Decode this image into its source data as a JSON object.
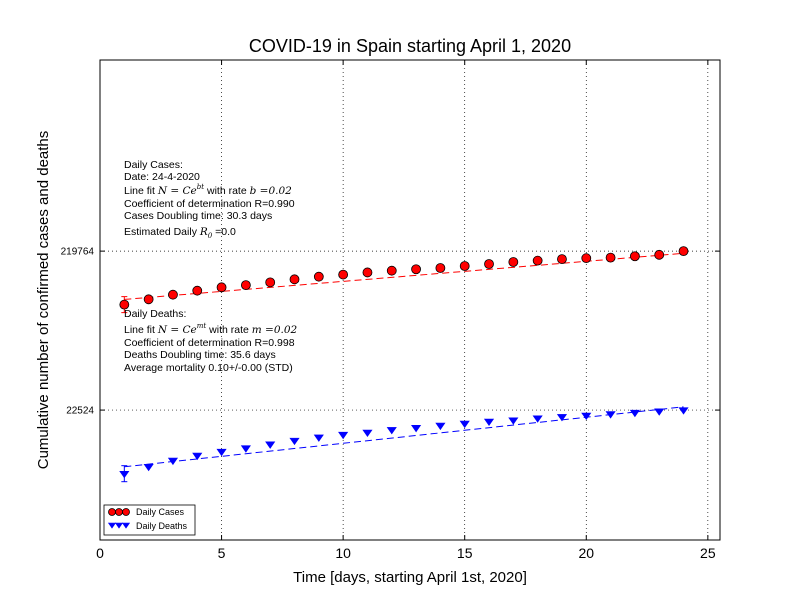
{
  "chart_data": {
    "type": "scatter",
    "title": "COVID-19 in Spain starting April 1, 2020",
    "xlabel": "Time [days, starting April 1st, 2020]",
    "ylabel": "Cumulative number of confirmed cases and deaths",
    "xlim": [
      0,
      25.5
    ],
    "xticks": [
      0,
      5,
      10,
      15,
      20,
      25
    ],
    "y_scale": "log",
    "ylim": [
      3500,
      3400000
    ],
    "yticks": [
      22524,
      219764
    ],
    "ytick_labels": [
      "22524",
      "219764"
    ],
    "grid": true,
    "legend_position": "lower-left",
    "series": [
      {
        "name": "Daily Cases",
        "color": "#ff0000",
        "marker": "circle",
        "x": [
          1,
          2,
          3,
          4,
          5,
          6,
          7,
          8,
          9,
          10,
          11,
          12,
          13,
          14,
          15,
          16,
          17,
          18,
          19,
          20,
          21,
          22,
          23,
          24
        ],
        "y": [
          102100,
          110200,
          117700,
          124700,
          130800,
          135000,
          140500,
          146700,
          152400,
          157000,
          161900,
          166000,
          169500,
          172500,
          177600,
          182800,
          188100,
          191700,
          195900,
          198700,
          200200,
          204200,
          208400,
          219764
        ],
        "fit_line": {
          "x": [
            1,
            24
          ],
          "y": [
            110000,
            213000
          ]
        }
      },
      {
        "name": "Daily Deaths",
        "color": "#0000ff",
        "marker": "triangle-down",
        "x": [
          1,
          2,
          3,
          4,
          5,
          6,
          7,
          8,
          9,
          10,
          11,
          12,
          13,
          14,
          15,
          16,
          17,
          18,
          19,
          20,
          21,
          22,
          23,
          24
        ],
        "y": [
          9053,
          10003,
          10935,
          11744,
          12418,
          13055,
          13798,
          14555,
          15238,
          15843,
          16353,
          16972,
          17489,
          18056,
          18579,
          19130,
          19478,
          20043,
          20453,
          20852,
          21282,
          21717,
          22157,
          22524
        ],
        "fit_line": {
          "x": [
            1,
            24
          ],
          "y": [
            10000,
            23600
          ]
        }
      }
    ]
  },
  "annotations": {
    "cases": {
      "color": "#ff0000",
      "header": "Daily Cases:",
      "date": "Date: 24-4-2020",
      "fit_prefix": "Line fit ",
      "fit_formula": "N = Ce",
      "fit_exp": "bt",
      "fit_mid": " with rate ",
      "fit_rate": "b =0.02",
      "coef": "Coefficient of determination R=0.990",
      "doubling": "Cases Doubling time: 30.3 days",
      "r0_prefix": "Estimated Daily ",
      "r0_symbol": "R",
      "r0_sub": "0",
      "r0_value": " =0.0"
    },
    "deaths": {
      "color": "#0000ff",
      "header": "Daily Deaths:",
      "fit_prefix": "Line fit ",
      "fit_formula": "N = Ce",
      "fit_exp": "mt",
      "fit_mid": " with rate ",
      "fit_rate": "m =0.02",
      "coef": "Coefficient of determination R=0.998",
      "doubling": "Deaths Doubling time: 35.6 days",
      "mortality": "Average mortality 0.10+/-0.00 (STD)"
    }
  }
}
